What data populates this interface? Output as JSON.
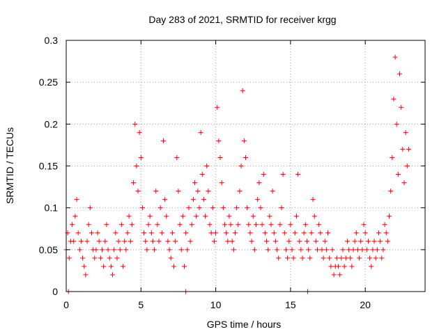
{
  "chart_data": {
    "type": "scatter",
    "title": "Day 283 of 2021, SRMTID for receiver krgg",
    "xlabel": "GPS time / hours",
    "ylabel": "SRMTID / TECUs",
    "xlim": [
      0,
      24
    ],
    "ylim": [
      0,
      0.3
    ],
    "xticks": [
      0,
      5,
      10,
      15,
      20
    ],
    "xtick_labels": [
      "0",
      "5",
      "10",
      "15",
      "20"
    ],
    "yticks": [
      0,
      0.05,
      0.1,
      0.15,
      0.2,
      0.25,
      0.3
    ],
    "ytick_labels": [
      "0",
      "0.05",
      "0.1",
      "0.15",
      "0.2",
      "0.25",
      "0.3"
    ],
    "grid": true,
    "marker": "+",
    "color": "#ff0000",
    "series": [
      {
        "name": "SRMTID",
        "points": [
          [
            0.0,
            0.05
          ],
          [
            0.1,
            0.07
          ],
          [
            0.2,
            0.04
          ],
          [
            0.3,
            0.06
          ],
          [
            0.4,
            0.08
          ],
          [
            0.5,
            0.06
          ],
          [
            0.6,
            0.09
          ],
          [
            0.7,
            0.11
          ],
          [
            0.8,
            0.07
          ],
          [
            0.9,
            0.05
          ],
          [
            1.0,
            0.06
          ],
          [
            1.1,
            0.04
          ],
          [
            1.2,
            0.03
          ],
          [
            1.3,
            0.02
          ],
          [
            1.4,
            0.06
          ],
          [
            1.5,
            0.08
          ],
          [
            1.6,
            0.1
          ],
          [
            1.7,
            0.07
          ],
          [
            1.8,
            0.05
          ],
          [
            1.9,
            0.04
          ],
          [
            2.0,
            0.05
          ],
          [
            2.1,
            0.07
          ],
          [
            2.2,
            0.06
          ],
          [
            2.3,
            0.04
          ],
          [
            2.4,
            0.05
          ],
          [
            2.5,
            0.03
          ],
          [
            2.6,
            0.06
          ],
          [
            2.7,
            0.08
          ],
          [
            2.8,
            0.05
          ],
          [
            2.9,
            0.04
          ],
          [
            3.0,
            0.03
          ],
          [
            3.1,
            0.02
          ],
          [
            3.2,
            0.05
          ],
          [
            3.3,
            0.07
          ],
          [
            3.4,
            0.04
          ],
          [
            3.5,
            0.06
          ],
          [
            3.6,
            0.05
          ],
          [
            3.7,
            0.08
          ],
          [
            3.8,
            0.03
          ],
          [
            3.9,
            0.06
          ],
          [
            4.0,
            0.05
          ],
          [
            4.1,
            0.07
          ],
          [
            4.2,
            0.09
          ],
          [
            4.3,
            0.06
          ],
          [
            4.4,
            0.08
          ],
          [
            4.5,
            0.13
          ],
          [
            4.6,
            0.2
          ],
          [
            4.7,
            0.15
          ],
          [
            4.8,
            0.12
          ],
          [
            4.9,
            0.19
          ],
          [
            5.0,
            0.16
          ],
          [
            5.1,
            0.1
          ],
          [
            5.2,
            0.07
          ],
          [
            5.3,
            0.06
          ],
          [
            5.4,
            0.05
          ],
          [
            5.5,
            0.08
          ],
          [
            5.6,
            0.09
          ],
          [
            5.7,
            0.07
          ],
          [
            5.8,
            0.06
          ],
          [
            5.9,
            0.05
          ],
          [
            6.0,
            0.12
          ],
          [
            6.1,
            0.08
          ],
          [
            6.2,
            0.06
          ],
          [
            6.3,
            0.1
          ],
          [
            6.4,
            0.07
          ],
          [
            6.5,
            0.18
          ],
          [
            6.6,
            0.11
          ],
          [
            6.7,
            0.09
          ],
          [
            6.8,
            0.06
          ],
          [
            6.9,
            0.05
          ],
          [
            7.0,
            0.04
          ],
          [
            7.1,
            0.07
          ],
          [
            7.2,
            0.03
          ],
          [
            7.3,
            0.06
          ],
          [
            7.4,
            0.16
          ],
          [
            7.5,
            0.12
          ],
          [
            7.6,
            0.08
          ],
          [
            7.7,
            0.05
          ],
          [
            7.8,
            0.09
          ],
          [
            7.9,
            0.03
          ],
          [
            8.0,
            0.07
          ],
          [
            8.1,
            0.05
          ],
          [
            8.2,
            0.1
          ],
          [
            8.3,
            0.06
          ],
          [
            8.4,
            0.08
          ],
          [
            8.5,
            0.11
          ],
          [
            8.6,
            0.13
          ],
          [
            8.7,
            0.09
          ],
          [
            8.8,
            0.12
          ],
          [
            8.9,
            0.1
          ],
          [
            9.0,
            0.19
          ],
          [
            9.1,
            0.14
          ],
          [
            9.2,
            0.11
          ],
          [
            9.3,
            0.09
          ],
          [
            9.4,
            0.15
          ],
          [
            9.5,
            0.12
          ],
          [
            9.6,
            0.08
          ],
          [
            9.7,
            0.07
          ],
          [
            9.8,
            0.1
          ],
          [
            9.9,
            0.06
          ],
          [
            10.0,
            0.07
          ],
          [
            10.1,
            0.22
          ],
          [
            10.2,
            0.18
          ],
          [
            10.3,
            0.16
          ],
          [
            10.4,
            0.13
          ],
          [
            10.5,
            0.1
          ],
          [
            10.6,
            0.08
          ],
          [
            10.7,
            0.07
          ],
          [
            10.8,
            0.06
          ],
          [
            10.9,
            0.09
          ],
          [
            11.0,
            0.08
          ],
          [
            11.1,
            0.06
          ],
          [
            11.2,
            0.05
          ],
          [
            11.3,
            0.07
          ],
          [
            11.4,
            0.1
          ],
          [
            11.5,
            0.08
          ],
          [
            11.6,
            0.12
          ],
          [
            11.7,
            0.15
          ],
          [
            11.8,
            0.24
          ],
          [
            11.9,
            0.18
          ],
          [
            12.0,
            0.16
          ],
          [
            12.1,
            0.1
          ],
          [
            12.2,
            0.08
          ],
          [
            12.3,
            0.07
          ],
          [
            12.4,
            0.06
          ],
          [
            12.5,
            0.09
          ],
          [
            12.6,
            0.05
          ],
          [
            12.7,
            0.08
          ],
          [
            12.8,
            0.11
          ],
          [
            12.9,
            0.13
          ],
          [
            13.0,
            0.1
          ],
          [
            13.1,
            0.08
          ],
          [
            13.2,
            0.14
          ],
          [
            13.3,
            0.07
          ],
          [
            13.4,
            0.06
          ],
          [
            13.5,
            0.05
          ],
          [
            13.6,
            0.09
          ],
          [
            13.7,
            0.08
          ],
          [
            13.8,
            0.12
          ],
          [
            13.9,
            0.07
          ],
          [
            14.0,
            0.06
          ],
          [
            14.1,
            0.05
          ],
          [
            14.2,
            0.04
          ],
          [
            14.3,
            0.08
          ],
          [
            14.4,
            0.1
          ],
          [
            14.5,
            0.14
          ],
          [
            14.6,
            0.07
          ],
          [
            14.7,
            0.05
          ],
          [
            14.8,
            0.04
          ],
          [
            14.9,
            0.06
          ],
          [
            15.0,
            0.08
          ],
          [
            15.1,
            0.05
          ],
          [
            15.2,
            0.04
          ],
          [
            15.3,
            0.07
          ],
          [
            15.4,
            0.09
          ],
          [
            15.5,
            0.14
          ],
          [
            15.6,
            0.06
          ],
          [
            15.7,
            0.05
          ],
          [
            15.8,
            0.04
          ],
          [
            15.9,
            0.07
          ],
          [
            16.0,
            0.08
          ],
          [
            16.1,
            0.06
          ],
          [
            16.2,
            0.05
          ],
          [
            16.3,
            0.04
          ],
          [
            16.4,
            0.07
          ],
          [
            16.5,
            0.11
          ],
          [
            16.6,
            0.09
          ],
          [
            16.7,
            0.06
          ],
          [
            16.8,
            0.05
          ],
          [
            16.9,
            0.08
          ],
          [
            17.0,
            0.07
          ],
          [
            17.1,
            0.05
          ],
          [
            17.2,
            0.04
          ],
          [
            17.3,
            0.06
          ],
          [
            17.4,
            0.05
          ],
          [
            17.5,
            0.07
          ],
          [
            17.6,
            0.04
          ],
          [
            17.7,
            0.03
          ],
          [
            17.8,
            0.05
          ],
          [
            17.9,
            0.02
          ],
          [
            18.0,
            0.03
          ],
          [
            18.1,
            0.04
          ],
          [
            18.2,
            0.03
          ],
          [
            18.3,
            0.02
          ],
          [
            18.4,
            0.04
          ],
          [
            18.5,
            0.05
          ],
          [
            18.6,
            0.03
          ],
          [
            18.7,
            0.04
          ],
          [
            18.8,
            0.06
          ],
          [
            18.9,
            0.05
          ],
          [
            19.0,
            0.04
          ],
          [
            19.1,
            0.03
          ],
          [
            19.2,
            0.05
          ],
          [
            19.3,
            0.06
          ],
          [
            19.4,
            0.07
          ],
          [
            19.5,
            0.05
          ],
          [
            19.6,
            0.04
          ],
          [
            19.7,
            0.06
          ],
          [
            19.8,
            0.05
          ],
          [
            19.9,
            0.08
          ],
          [
            20.0,
            0.07
          ],
          [
            20.1,
            0.05
          ],
          [
            20.2,
            0.06
          ],
          [
            20.3,
            0.04
          ],
          [
            20.4,
            0.03
          ],
          [
            20.5,
            0.05
          ],
          [
            20.6,
            0.06
          ],
          [
            20.7,
            0.04
          ],
          [
            20.8,
            0.05
          ],
          [
            20.9,
            0.07
          ],
          [
            21.0,
            0.06
          ],
          [
            21.1,
            0.04
          ],
          [
            21.2,
            0.05
          ],
          [
            21.3,
            0.08
          ],
          [
            21.4,
            0.07
          ],
          [
            21.5,
            0.06
          ],
          [
            21.6,
            0.09
          ],
          [
            21.7,
            0.12
          ],
          [
            21.8,
            0.16
          ],
          [
            21.9,
            0.23
          ],
          [
            22.0,
            0.28
          ],
          [
            22.1,
            0.2
          ],
          [
            22.2,
            0.14
          ],
          [
            22.3,
            0.26
          ],
          [
            22.4,
            0.22
          ],
          [
            22.5,
            0.17
          ],
          [
            22.6,
            0.13
          ],
          [
            22.7,
            0.19
          ],
          [
            22.8,
            0.15
          ],
          [
            22.9,
            0.17
          ],
          [
            0.15,
            0.0
          ],
          [
            8.0,
            0.0
          ],
          [
            16.15,
            0.0
          ]
        ]
      }
    ]
  }
}
